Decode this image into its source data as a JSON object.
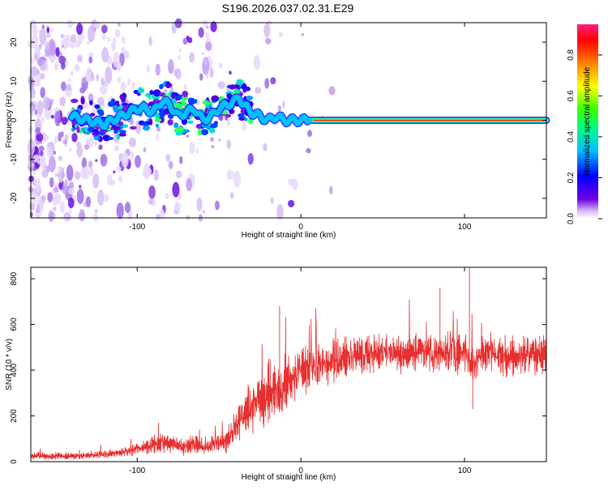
{
  "title": "S196.2026.037.02.31.E29",
  "chart_data": [
    {
      "type": "heatmap",
      "name": "spectrogram",
      "xlabel": "Height of straight line (km)",
      "ylabel": "Frequency (Hz)",
      "xlim": [
        -165,
        150
      ],
      "ylim": [
        -25,
        25
      ],
      "xticks": [
        -100,
        0,
        100
      ],
      "yticks": [
        -20,
        -10,
        0,
        10,
        20
      ],
      "xtick_labels": [
        "-100",
        "0",
        "100"
      ],
      "ytick_labels": [
        "-20",
        "-10",
        "0",
        "10",
        "20"
      ],
      "colorbar": {
        "label": "Normalized spectral amplitude",
        "range": [
          0,
          0.95
        ],
        "ticks": [
          0.0,
          0.2,
          0.4,
          0.6,
          0.8
        ],
        "tick_labels": [
          "0.0",
          "0.2",
          "0.4",
          "0.6",
          "0.8"
        ],
        "colormap": [
          "#ffffff",
          "#c8a0f0",
          "#7000e0",
          "#0000ff",
          "#00c0ff",
          "#00ff80",
          "#40ff00",
          "#ffff00",
          "#ff8000",
          "#ff0000",
          "#ff2080"
        ]
      },
      "ridge_x": [
        -165,
        -150,
        -140,
        -130,
        -120,
        -115,
        -110,
        -100,
        -95,
        -90,
        -85,
        -80,
        -75,
        -70,
        -65,
        -60,
        -55,
        -50,
        -45,
        -40,
        -38,
        -35,
        -30,
        -25,
        -20,
        -15,
        -10,
        -5,
        0,
        5,
        10,
        20,
        40,
        60,
        80,
        100,
        120,
        150
      ],
      "ridge_freq": [
        3,
        2,
        1,
        0,
        -1,
        0,
        1,
        3,
        3,
        2,
        5,
        4,
        1,
        2,
        3,
        0,
        1,
        3,
        4,
        5,
        6,
        4,
        2,
        1,
        0,
        1,
        0,
        0,
        0,
        0,
        0,
        0,
        0,
        0,
        0,
        0,
        0,
        0
      ]
    },
    {
      "type": "line",
      "name": "snr",
      "xlabel": "Height of straight line (km)",
      "ylabel": "SNR (10 * v/v)",
      "xlim": [
        -165,
        150
      ],
      "ylim": [
        0,
        850
      ],
      "xticks": [
        -100,
        0,
        100
      ],
      "yticks": [
        0,
        200,
        400,
        600,
        800
      ],
      "xtick_labels": [
        "-100",
        "0",
        "100"
      ],
      "ytick_labels": [
        "0",
        "200",
        "400",
        "600",
        "800"
      ],
      "color": "#e83030",
      "series": [
        {
          "name": "SNR",
          "x": [
            -165,
            -150,
            -140,
            -130,
            -120,
            -110,
            -100,
            -90,
            -85,
            -80,
            -75,
            -70,
            -65,
            -60,
            -55,
            -50,
            -45,
            -40,
            -35,
            -30,
            -25,
            -20,
            -15,
            -10,
            -5,
            0,
            5,
            10,
            15,
            20,
            25,
            30,
            40,
            50,
            60,
            70,
            80,
            90,
            100,
            105,
            110,
            120,
            130,
            140,
            150
          ],
          "values": [
            25,
            25,
            25,
            28,
            32,
            40,
            55,
            75,
            80,
            80,
            65,
            70,
            75,
            65,
            70,
            80,
            90,
            150,
            200,
            240,
            270,
            300,
            310,
            330,
            360,
            400,
            410,
            420,
            430,
            440,
            450,
            460,
            470,
            480,
            470,
            480,
            470,
            470,
            470,
            420,
            470,
            460,
            460,
            470,
            470
          ],
          "amplitude": [
            15,
            15,
            15,
            15,
            15,
            18,
            25,
            40,
            45,
            45,
            35,
            35,
            40,
            35,
            35,
            40,
            50,
            80,
            100,
            110,
            120,
            130,
            130,
            120,
            110,
            100,
            90,
            90,
            85,
            85,
            80,
            80,
            80,
            80,
            80,
            80,
            80,
            80,
            80,
            80,
            80,
            80,
            80,
            80,
            80
          ]
        }
      ],
      "spikes": [
        {
          "x": -87,
          "y": 170
        },
        {
          "x": -13,
          "y": 680
        },
        {
          "x": 85,
          "y": 760
        },
        {
          "x": 103,
          "y": 850
        },
        {
          "x": 105,
          "y": 230
        }
      ]
    }
  ]
}
